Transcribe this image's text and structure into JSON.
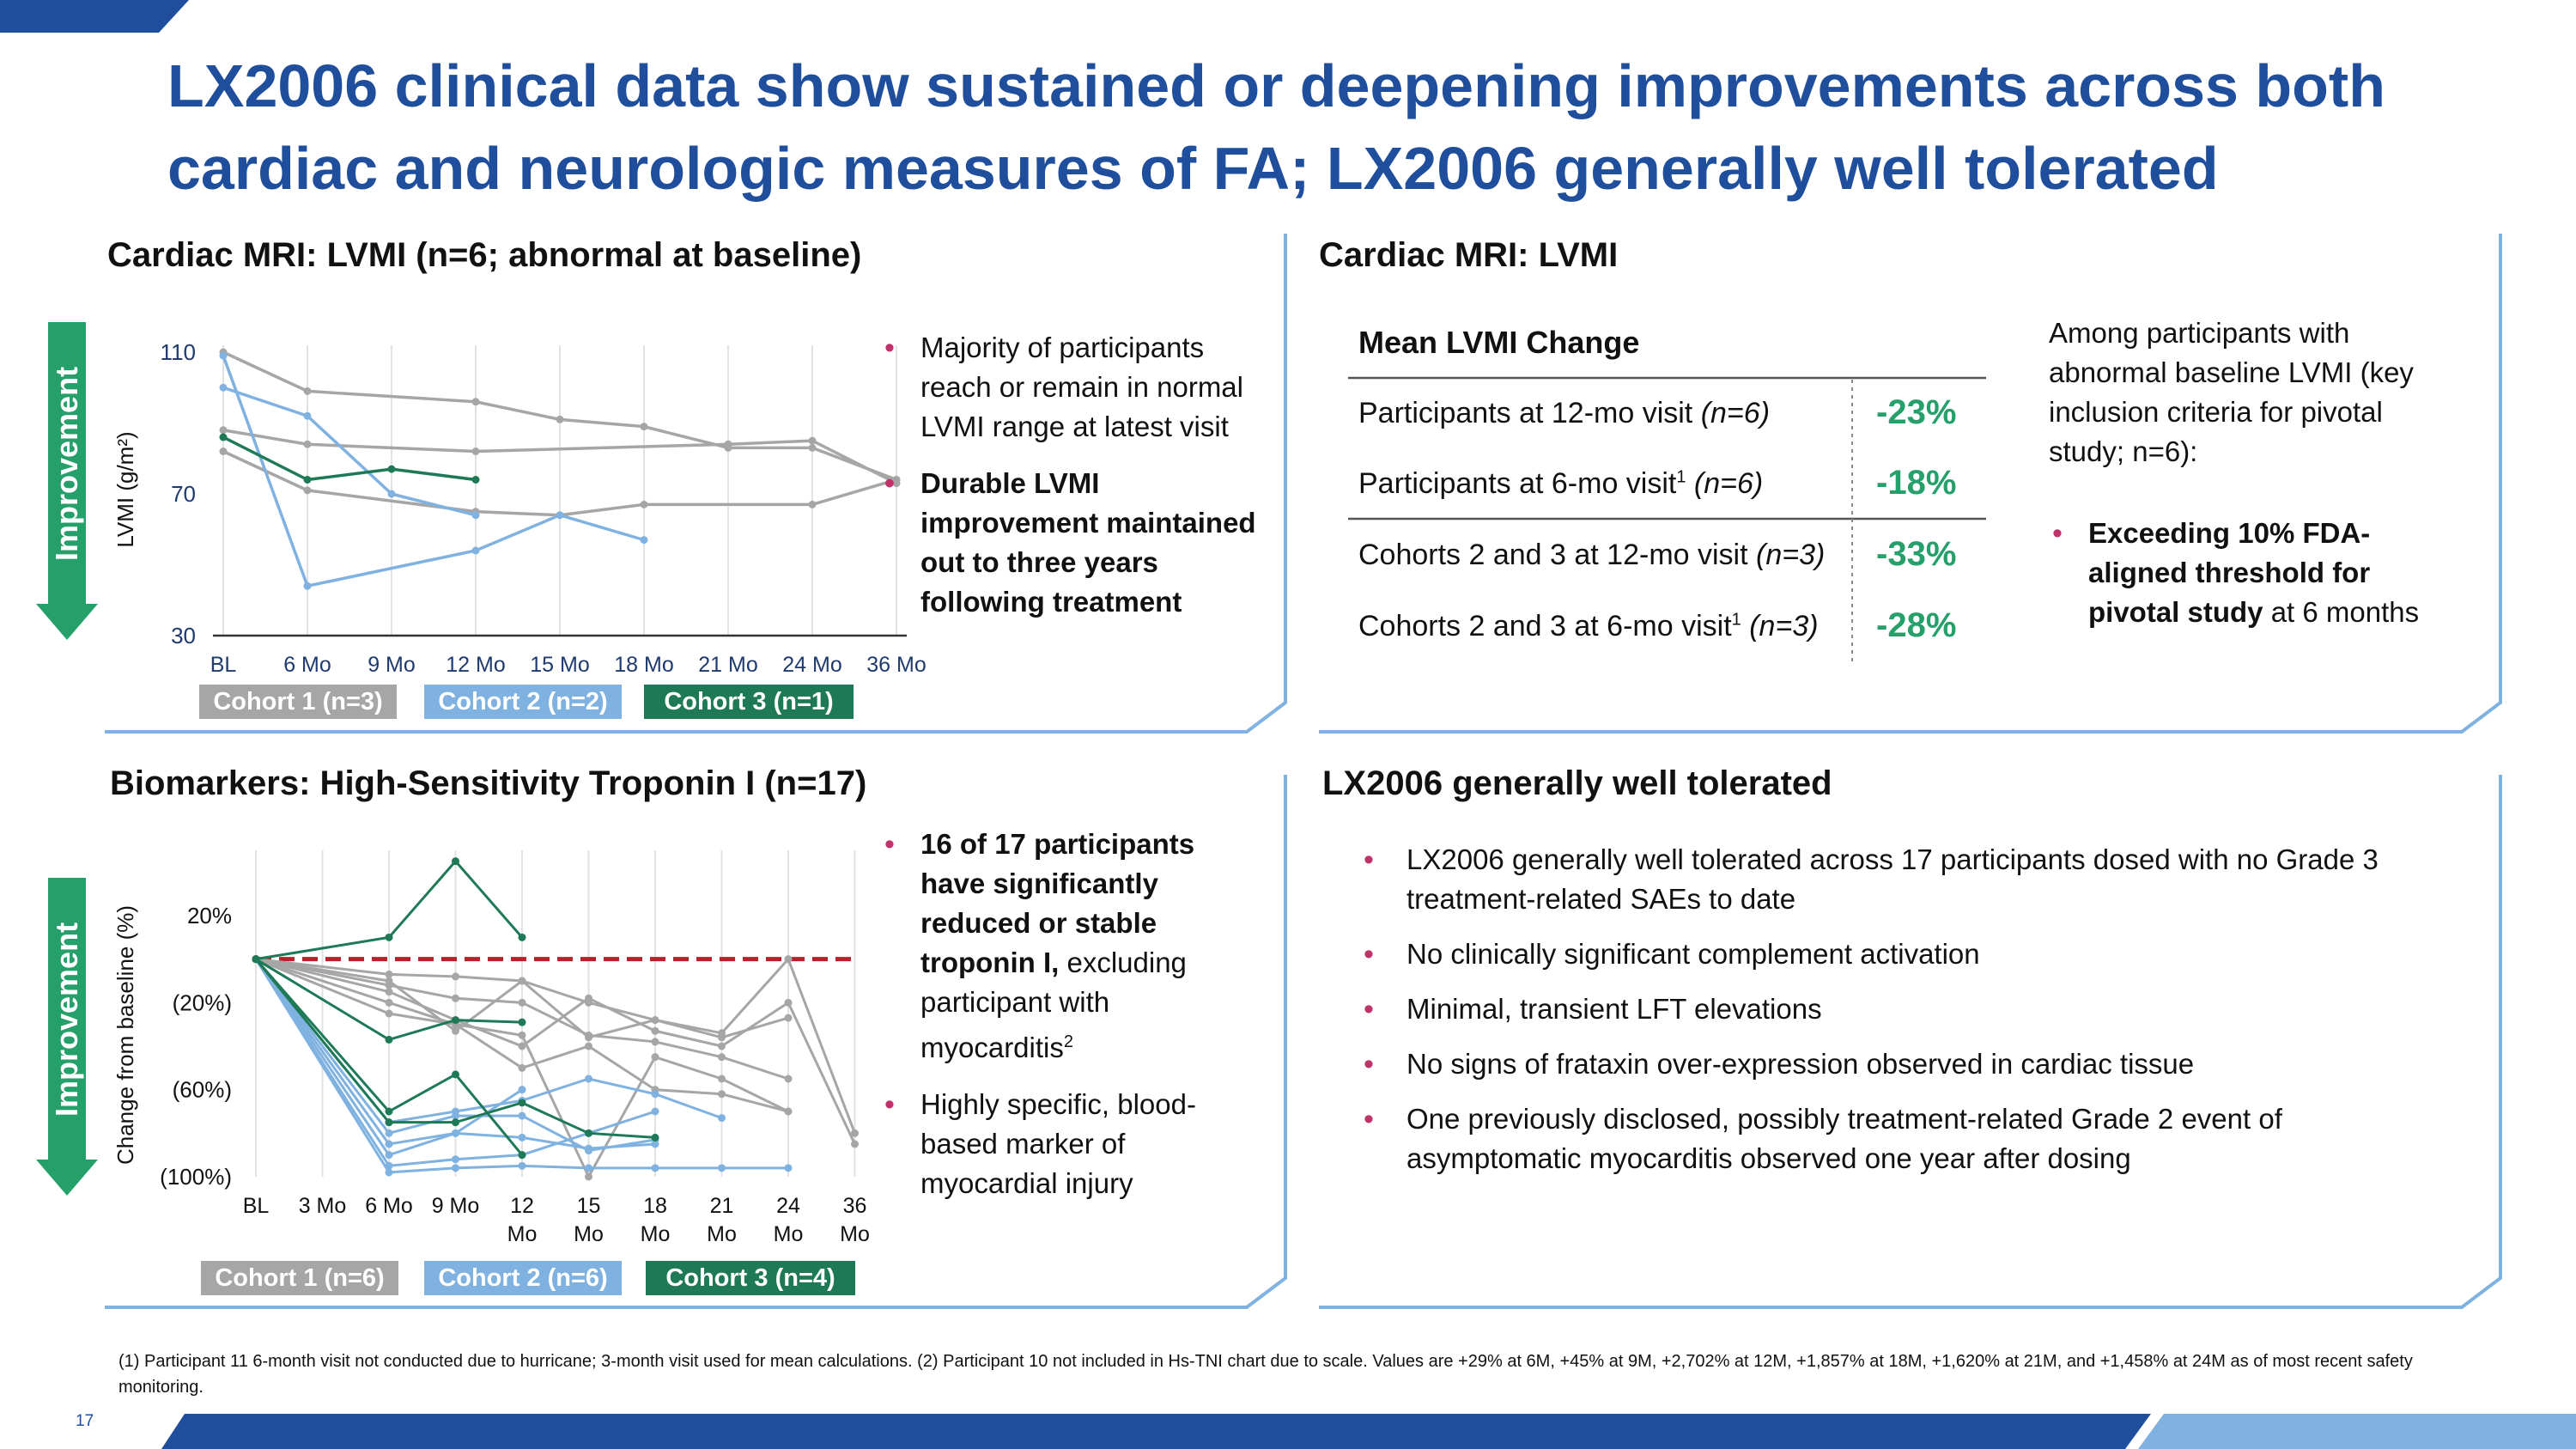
{
  "title": "LX2006 clinical data show sustained or deepening improvements across both cardiac and neurologic measures of FA; LX2006 generally well tolerated",
  "colors": {
    "brand_blue": "#1f4e9c",
    "cohort1": "#a6a6a6",
    "cohort2": "#7fb2e0",
    "cohort3": "#1e7a56",
    "improve_green": "#26a06b",
    "bullet": "#c0336a",
    "red_dashed": "#b8202a"
  },
  "improvement_label": "Improvement",
  "lvmi_panel": {
    "heading": "Cardiac MRI: LVMI (n=6; abnormal at baseline)",
    "bullets": [
      {
        "text": "Majority of participants reach or remain in normal LVMI range at latest visit",
        "bold": false
      },
      {
        "text": "Durable LVMI improvement maintained out to three years following treatment",
        "bold": true
      }
    ],
    "legend": [
      "Cohort 1 (n=3)",
      "Cohort 2 (n=2)",
      "Cohort 3 (n=1)"
    ]
  },
  "troponin_panel": {
    "heading": "Biomarkers: High-Sensitivity Troponin I (n=17)",
    "bullet1_bold": "16 of 17 participants have significantly reduced or stable troponin I,",
    "bullet1_rest": " excluding participant with myocarditis",
    "bullet1_sup": "2",
    "bullet2": "Highly specific, blood-based marker of myocardial injury",
    "legend": [
      "Cohort 1 (n=6)",
      "Cohort 2 (n=6)",
      "Cohort 3 (n=4)"
    ]
  },
  "mean_lvmi": {
    "heading": "Cardiac MRI: LVMI",
    "table_header": "Mean LVMI Change",
    "rows": [
      {
        "label": "Participants at 12-mo visit ",
        "n": "(n=6)",
        "sup": "",
        "value": "-23%"
      },
      {
        "label": "Participants at 6-mo visit",
        "n": " (n=6)",
        "sup": "1",
        "value": "-18%"
      },
      {
        "label": "Cohorts 2 and 3 at 12-mo visit ",
        "n": "(n=3)",
        "sup": "",
        "value": "-33%"
      },
      {
        "label": "Cohorts 2 and 3 at 6-mo visit",
        "n": " (n=3)",
        "sup": "1",
        "value": "-28%"
      }
    ],
    "note": "Among participants with abnormal baseline LVMI (key inclusion criteria for pivotal study; n=6):",
    "note_bullet_bold": "Exceeding 10% FDA-aligned threshold for pivotal study",
    "note_bullet_rest": " at 6 months"
  },
  "safety": {
    "heading": "LX2006 generally well tolerated",
    "bullets": [
      "LX2006 generally well tolerated across 17 participants dosed with no Grade 3 treatment-related SAEs to date",
      "No clinically significant complement activation",
      "Minimal, transient LFT elevations",
      "No signs of frataxin over-expression observed in cardiac tissue",
      "One previously disclosed, possibly treatment-related Grade 2 event of asymptomatic myocarditis observed one year after dosing"
    ]
  },
  "footnote": "(1) Participant 11 6-month visit not conducted due to hurricane; 3-month visit used for mean calculations. (2) Participant 10 not included in Hs-TNI chart due to scale. Values are +29% at 6M, +45% at 9M, +2,702% at 12M, +1,857% at 18M, +1,620% at 21M, and +1,458% at 24M as of most recent safety monitoring.",
  "page_number": "17",
  "chart_data": [
    {
      "type": "line",
      "ylabel": "LVMI (g/m²)",
      "ylim": [
        30,
        110
      ],
      "yticks": [
        "30",
        "70",
        "110"
      ],
      "categories": [
        "BL",
        "6 Mo",
        "9 Mo",
        "12 Mo",
        "15 Mo",
        "18 Mo",
        "21 Mo",
        "24 Mo",
        "36 Mo"
      ],
      "series": [
        {
          "cohort": 1,
          "values": [
            110,
            99,
            null,
            96,
            91,
            89,
            83,
            83,
            74
          ]
        },
        {
          "cohort": 1,
          "values": [
            88,
            84,
            null,
            82,
            null,
            null,
            84,
            85,
            73
          ]
        },
        {
          "cohort": 1,
          "values": [
            82,
            71,
            null,
            65,
            64,
            67,
            null,
            67,
            74
          ]
        },
        {
          "cohort": 2,
          "values": [
            100,
            92,
            70,
            64,
            null,
            null,
            null,
            null,
            null
          ]
        },
        {
          "cohort": 2,
          "values": [
            109,
            44,
            null,
            54,
            64,
            57,
            null,
            null,
            null
          ]
        },
        {
          "cohort": 3,
          "values": [
            86,
            74,
            77,
            74,
            null,
            null,
            null,
            null,
            null
          ]
        }
      ]
    },
    {
      "type": "line",
      "ylabel": "Change from baseline (%)",
      "ylim": [
        -100,
        50
      ],
      "yticks": [
        "20%",
        "(20%)",
        "(60%)",
        "(100%)"
      ],
      "categories": [
        "BL",
        "3 Mo",
        "6 Mo",
        "9 Mo",
        "12 Mo",
        "15 Mo",
        "18 Mo",
        "21 Mo",
        "24 Mo",
        "36 Mo"
      ],
      "reference_line": 0,
      "series": [
        {
          "cohort": 1,
          "values": [
            0,
            null,
            -10,
            -33,
            -10,
            -36,
            -28,
            -34,
            0,
            -80
          ]
        },
        {
          "cohort": 1,
          "values": [
            0,
            null,
            -15,
            -28,
            -40,
            -18,
            -33,
            -40,
            -20,
            -85
          ]
        },
        {
          "cohort": 1,
          "values": [
            0,
            null,
            -20,
            -30,
            -50,
            -40,
            -60,
            -62,
            -70,
            null
          ]
        },
        {
          "cohort": 1,
          "values": [
            0,
            null,
            -7,
            -8,
            -10,
            -20,
            -28,
            -36,
            -27,
            null
          ]
        },
        {
          "cohort": 1,
          "values": [
            0,
            null,
            -25,
            -30,
            -35,
            -100,
            -45,
            -55,
            -70,
            null
          ]
        },
        {
          "cohort": 1,
          "values": [
            0,
            null,
            -12,
            -18,
            -20,
            -35,
            -38,
            -45,
            -55,
            null
          ]
        },
        {
          "cohort": 2,
          "values": [
            0,
            null,
            -90,
            -80,
            -60,
            null,
            null,
            null,
            null,
            null
          ]
        },
        {
          "cohort": 2,
          "values": [
            0,
            null,
            -95,
            -92,
            -90,
            -80,
            -70,
            null,
            null,
            null
          ]
        },
        {
          "cohort": 2,
          "values": [
            0,
            null,
            -75,
            -70,
            -65,
            -55,
            -62,
            -73,
            null,
            null
          ]
        },
        {
          "cohort": 2,
          "values": [
            0,
            null,
            -85,
            -80,
            -82,
            -87,
            -85,
            null,
            null,
            null
          ]
        },
        {
          "cohort": 2,
          "values": [
            0,
            null,
            -98,
            -96,
            -95,
            -96,
            -96,
            -96,
            -96,
            null
          ]
        },
        {
          "cohort": 2,
          "values": [
            0,
            null,
            -80,
            -72,
            -72,
            -88,
            -83,
            null,
            null,
            null
          ]
        },
        {
          "cohort": 3,
          "values": [
            0,
            null,
            10,
            45,
            10,
            null,
            null,
            null,
            null,
            null
          ]
        },
        {
          "cohort": 3,
          "values": [
            0,
            null,
            -37,
            -28,
            -29,
            null,
            null,
            null,
            null,
            null
          ]
        },
        {
          "cohort": 3,
          "values": [
            0,
            null,
            -70,
            -53,
            -90,
            null,
            null,
            null,
            null,
            null
          ]
        },
        {
          "cohort": 3,
          "values": [
            0,
            null,
            -75,
            -75,
            -66,
            -80,
            -82,
            null,
            null,
            null
          ]
        }
      ]
    }
  ]
}
